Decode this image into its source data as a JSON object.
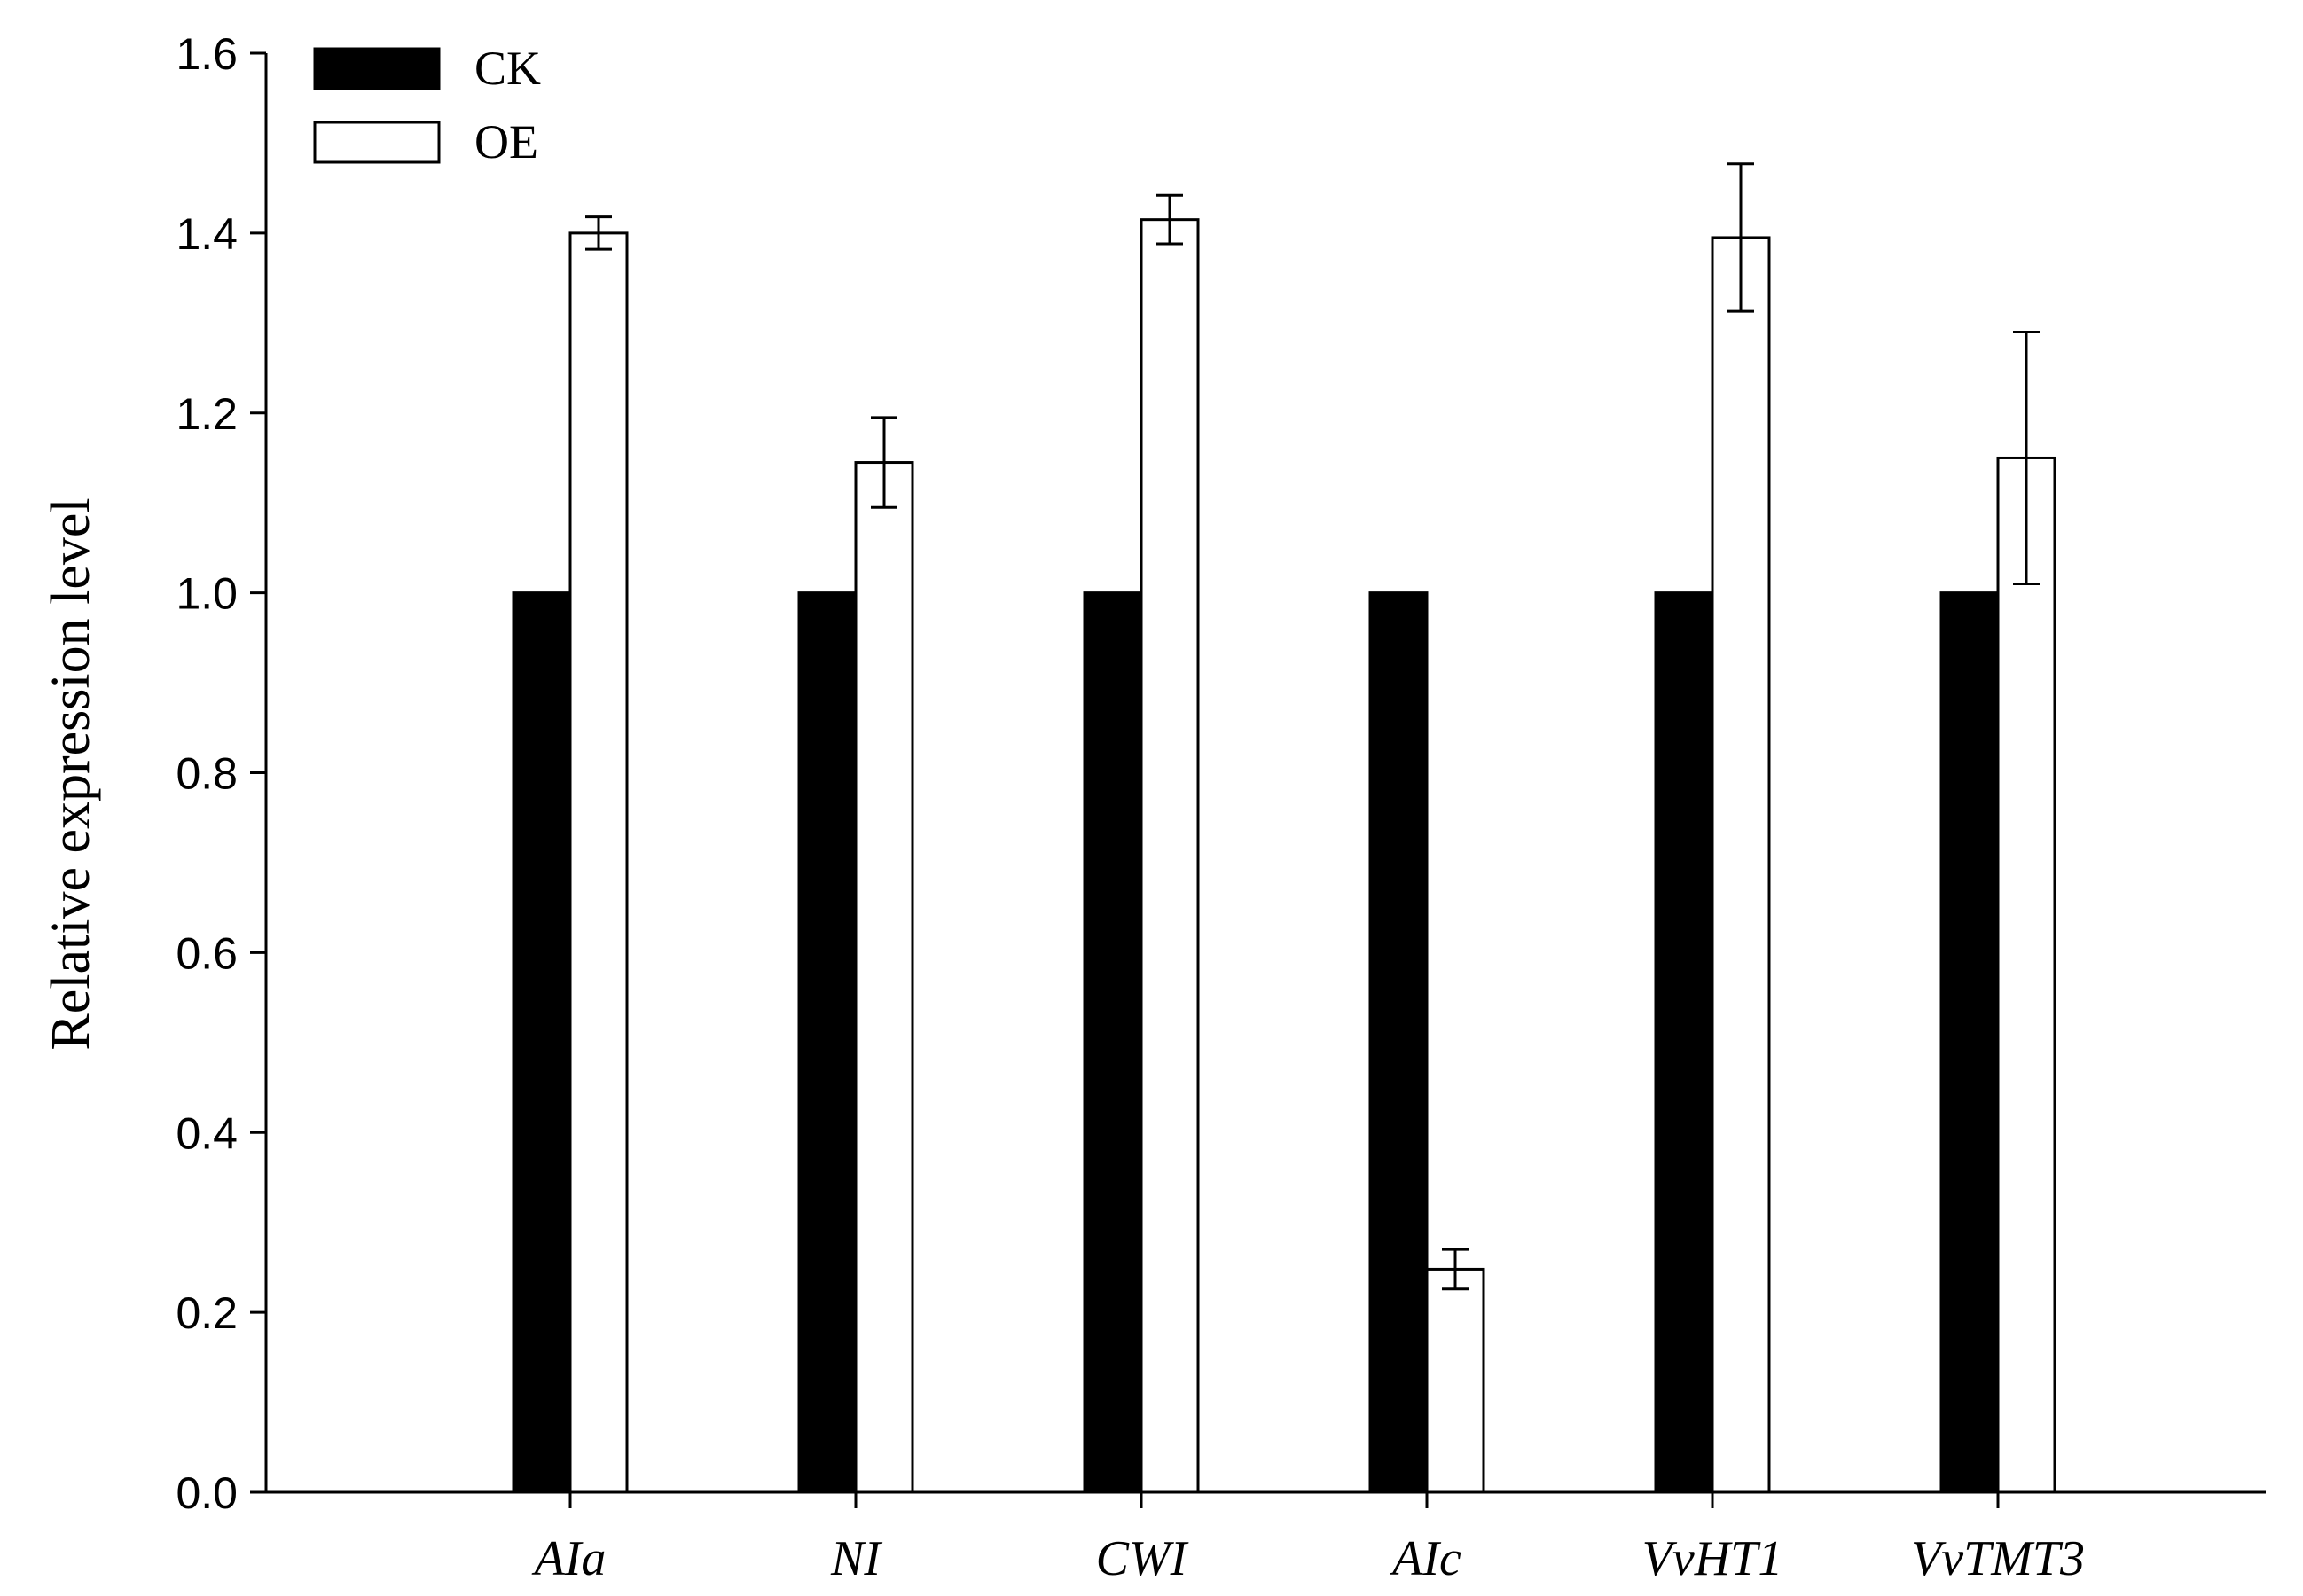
{
  "chart_data": {
    "type": "bar",
    "title": "",
    "xlabel": "",
    "ylabel": "Relative expression level",
    "ylim": [
      0,
      1.6
    ],
    "yticks": [
      "0.0",
      "0.2",
      "0.4",
      "0.6",
      "0.8",
      "1.0",
      "1.2",
      "1.4",
      "1.6"
    ],
    "categories": [
      "AIa",
      "NI",
      "CWI",
      "AIc",
      "VvHT1",
      "VvTMT3"
    ],
    "series": [
      {
        "name": "CK",
        "color": "#000000",
        "values": [
          1.0,
          1.0,
          1.0,
          1.0,
          1.0,
          1.0
        ],
        "errors": [
          0,
          0,
          0,
          0,
          0,
          0
        ]
      },
      {
        "name": "OE",
        "color": "#ffffff",
        "values": [
          1.4,
          1.145,
          1.415,
          0.248,
          1.395,
          1.15
        ],
        "errors": [
          0.018,
          0.05,
          0.027,
          0.022,
          0.082,
          0.14
        ]
      }
    ],
    "legend_position": "top-left",
    "grid": false
  }
}
